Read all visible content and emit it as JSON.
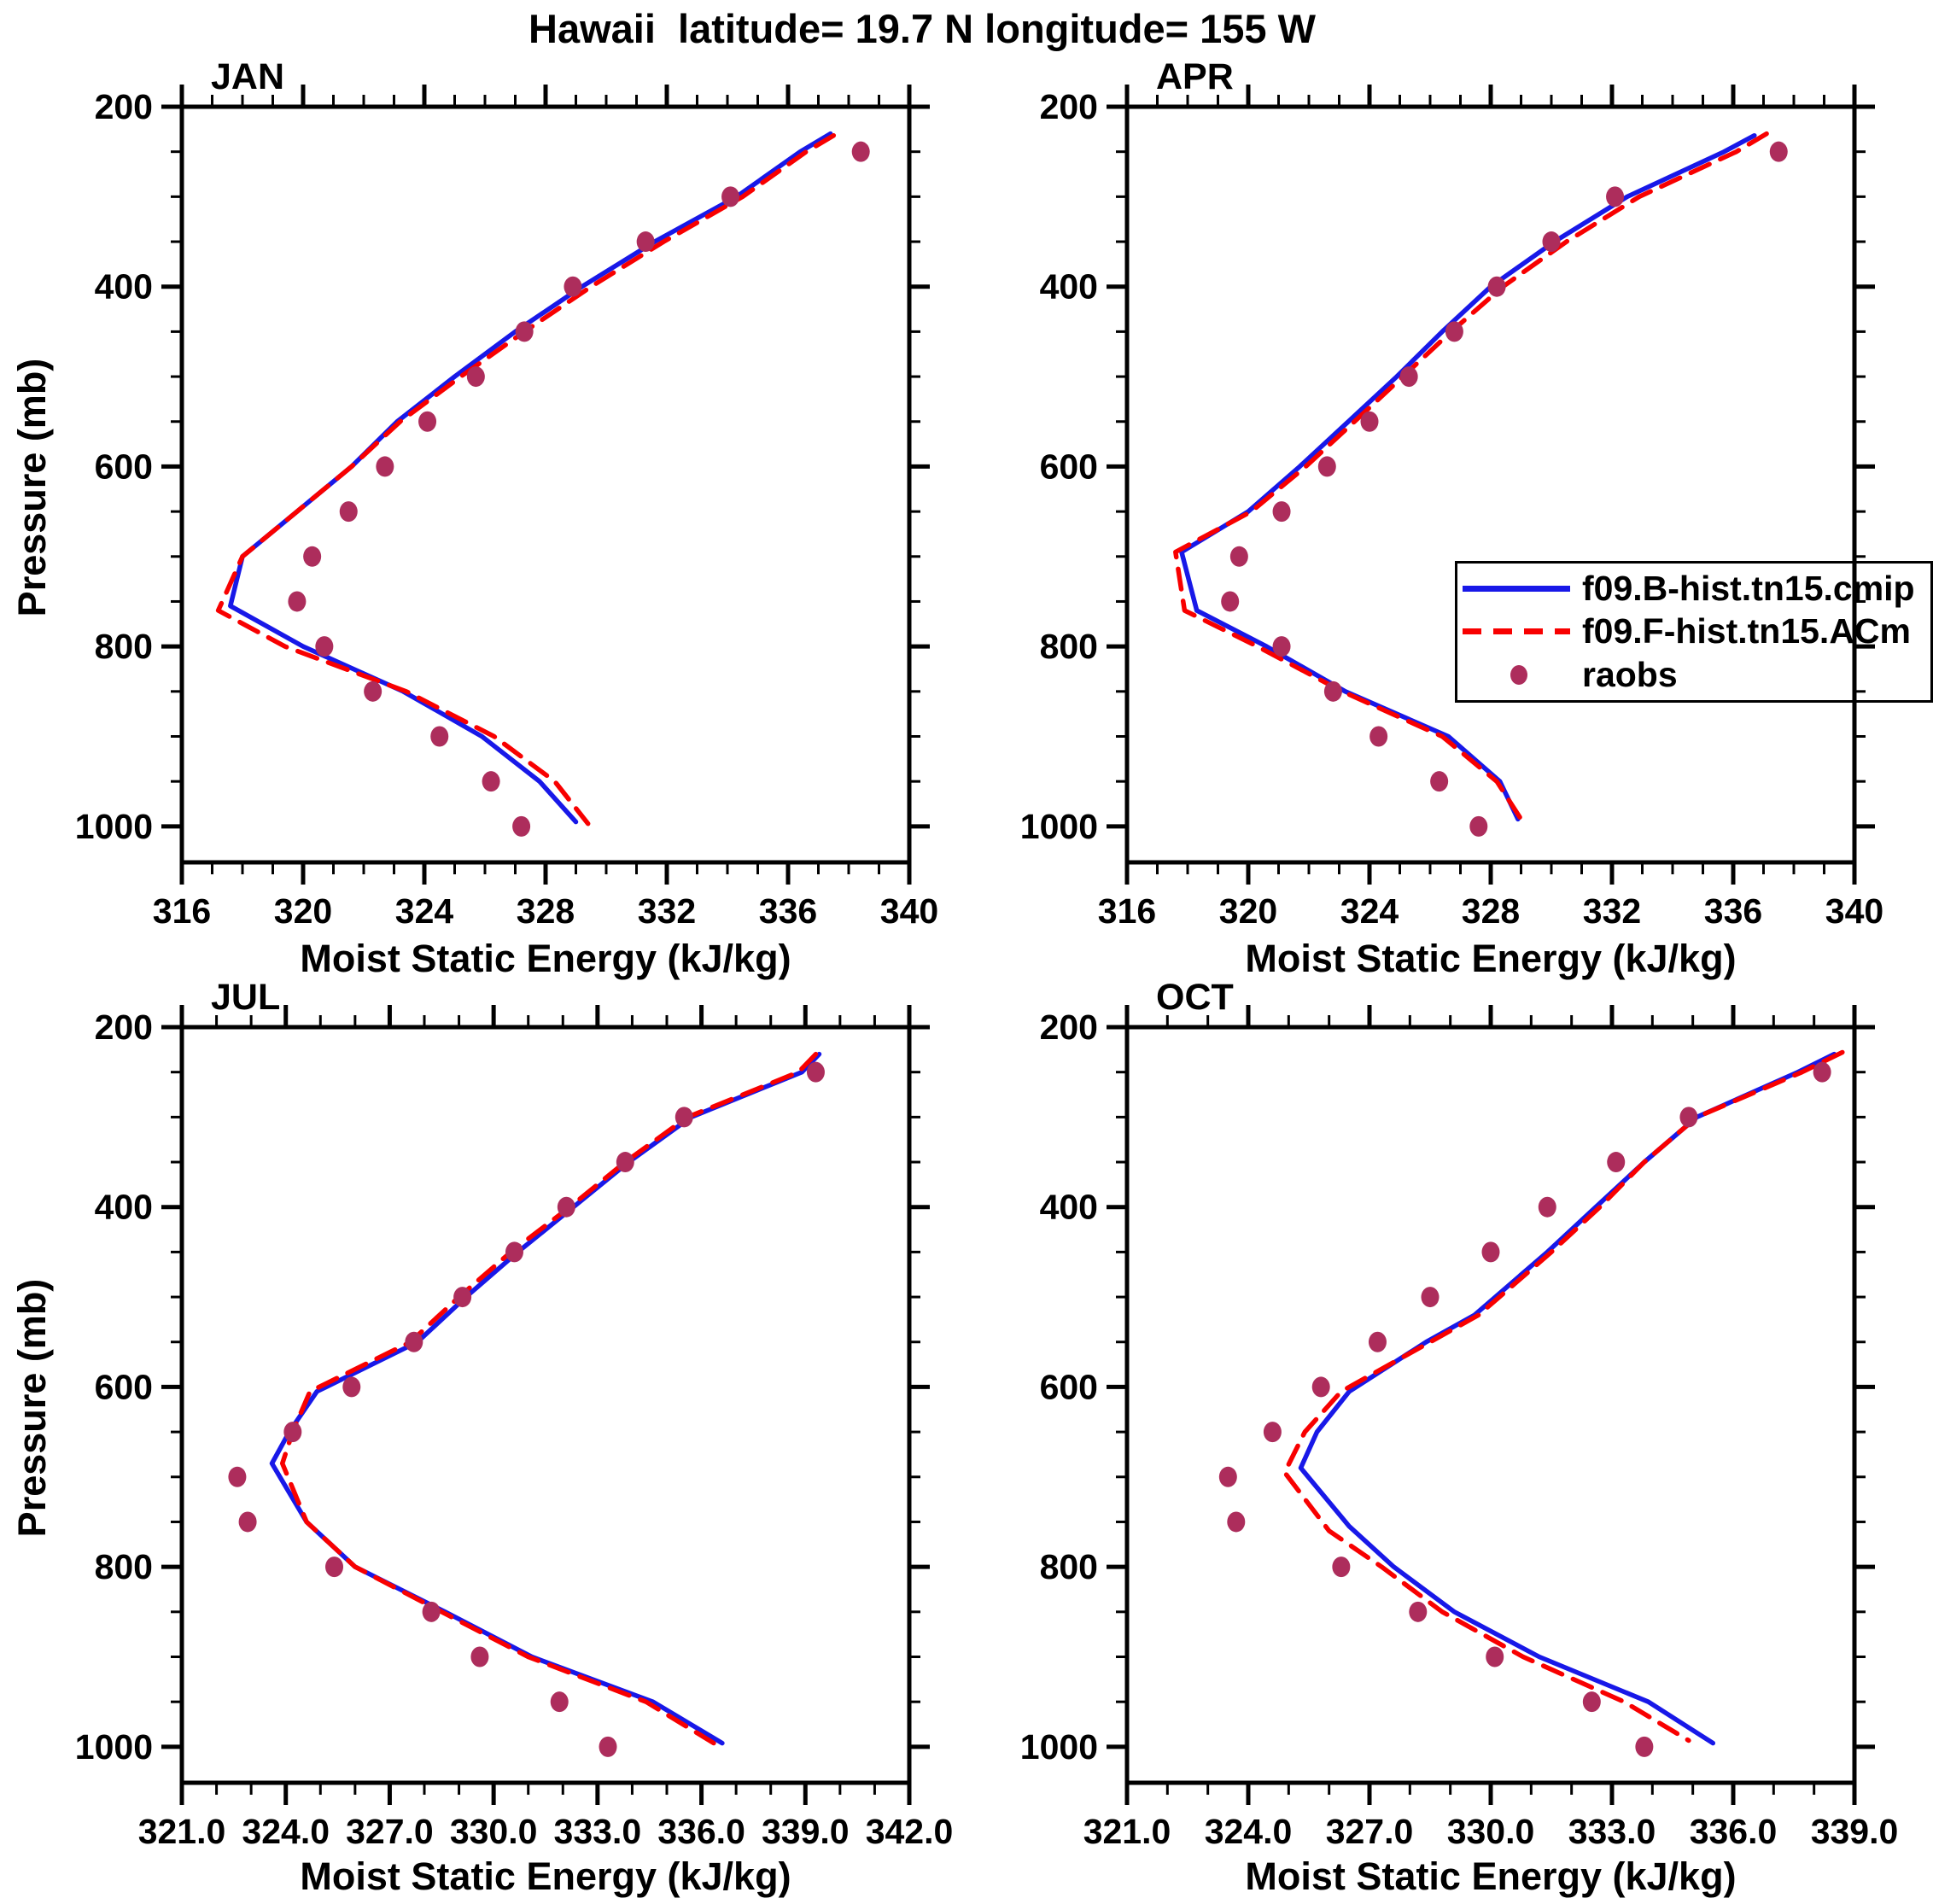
{
  "title": "Hawaii  latitude= 19.7 N longitude= 155 W",
  "axes": {
    "x_title": "Moist Static Energy (kJ/kg)",
    "y_title": "Pressure (mb)"
  },
  "colors": {
    "model_b": "#1818e8",
    "model_f": "#f80000",
    "raobs": "#ad2d5c",
    "axis": "#000000"
  },
  "legend": {
    "entries": [
      {
        "label": "f09.B-hist.tn15.cmip",
        "style": "solid",
        "color_key": "model_b"
      },
      {
        "label": "f09.F-hist.tn15.ACm",
        "style": "dashed",
        "color_key": "model_f"
      },
      {
        "label": "raobs",
        "style": "dots",
        "color_key": "raobs"
      }
    ]
  },
  "chart_data": [
    {
      "month": "JAN",
      "type": "line+scatter",
      "x_range": [
        316,
        340
      ],
      "x_major_step": 4,
      "x_minor_step": 1,
      "x_tick_labels": [
        "316",
        "320",
        "324",
        "328",
        "332",
        "336",
        "340"
      ],
      "y_range": [
        200,
        1040
      ],
      "y_ticks": [
        200,
        400,
        600,
        800,
        1000
      ],
      "y_minor_step": 50,
      "series": [
        {
          "name": "f09.B-hist.tn15.cmip",
          "style": "solid",
          "color_key": "model_b",
          "points": [
            [
              230,
              337.4
            ],
            [
              250,
              336.4
            ],
            [
              300,
              334.3
            ],
            [
              350,
              331.6
            ],
            [
              400,
              329.2
            ],
            [
              450,
              327.0
            ],
            [
              500,
              325.0
            ],
            [
              550,
              323.1
            ],
            [
              600,
              321.6
            ],
            [
              650,
              319.8
            ],
            [
              700,
              318.0
            ],
            [
              755,
              317.6
            ],
            [
              800,
              320.0
            ],
            [
              850,
              323.3
            ],
            [
              900,
              325.9
            ],
            [
              950,
              327.8
            ],
            [
              995,
              329.0
            ]
          ]
        },
        {
          "name": "f09.F-hist.tn15.ACm",
          "style": "dashed",
          "color_key": "model_f",
          "points": [
            [
              232,
              337.5
            ],
            [
              250,
              336.6
            ],
            [
              300,
              334.5
            ],
            [
              350,
              331.9
            ],
            [
              400,
              329.5
            ],
            [
              450,
              327.3
            ],
            [
              500,
              325.2
            ],
            [
              550,
              323.2
            ],
            [
              600,
              321.6
            ],
            [
              650,
              319.8
            ],
            [
              700,
              318.0
            ],
            [
              760,
              317.2
            ],
            [
              800,
              319.4
            ],
            [
              850,
              323.4
            ],
            [
              900,
              326.3
            ],
            [
              950,
              328.3
            ],
            [
              997,
              329.4
            ]
          ]
        },
        {
          "name": "raobs",
          "style": "dots",
          "color_key": "raobs",
          "points": [
            [
              250,
              338.4
            ],
            [
              300,
              334.1
            ],
            [
              350,
              331.3
            ],
            [
              400,
              328.9
            ],
            [
              450,
              327.3
            ],
            [
              500,
              325.7
            ],
            [
              550,
              324.1
            ],
            [
              600,
              322.7
            ],
            [
              650,
              321.5
            ],
            [
              700,
              320.3
            ],
            [
              750,
              319.8
            ],
            [
              800,
              320.7
            ],
            [
              850,
              322.3
            ],
            [
              900,
              324.5
            ],
            [
              950,
              326.2
            ],
            [
              1000,
              327.2
            ]
          ]
        }
      ]
    },
    {
      "month": "APR",
      "type": "line+scatter",
      "x_range": [
        316,
        340
      ],
      "x_major_step": 4,
      "x_minor_step": 1,
      "x_tick_labels": [
        "316",
        "320",
        "324",
        "328",
        "332",
        "336",
        "340"
      ],
      "y_range": [
        200,
        1040
      ],
      "y_ticks": [
        200,
        400,
        600,
        800,
        1000
      ],
      "y_minor_step": 50,
      "series": [
        {
          "name": "f09.B-hist.tn15.cmip",
          "style": "solid",
          "color_key": "model_b",
          "points": [
            [
              232,
              336.7
            ],
            [
              250,
              335.7
            ],
            [
              300,
              332.5
            ],
            [
              350,
              330.1
            ],
            [
              400,
              328.0
            ],
            [
              450,
              326.4
            ],
            [
              500,
              324.9
            ],
            [
              550,
              323.3
            ],
            [
              600,
              321.7
            ],
            [
              650,
              320.0
            ],
            [
              695,
              317.8
            ],
            [
              760,
              318.3
            ],
            [
              800,
              320.6
            ],
            [
              850,
              323.2
            ],
            [
              900,
              326.6
            ],
            [
              950,
              328.3
            ],
            [
              992,
              328.9
            ]
          ]
        },
        {
          "name": "f09.F-hist.tn15.ACm",
          "style": "dashed",
          "color_key": "model_f",
          "points": [
            [
              230,
              337.1
            ],
            [
              250,
              336.1
            ],
            [
              300,
              332.9
            ],
            [
              350,
              330.5
            ],
            [
              400,
              328.4
            ],
            [
              450,
              326.7
            ],
            [
              500,
              325.1
            ],
            [
              550,
              323.5
            ],
            [
              600,
              321.9
            ],
            [
              650,
              320.1
            ],
            [
              695,
              317.6
            ],
            [
              760,
              317.9
            ],
            [
              800,
              320.3
            ],
            [
              850,
              323.1
            ],
            [
              900,
              326.4
            ],
            [
              950,
              328.2
            ],
            [
              992,
              329.0
            ]
          ]
        },
        {
          "name": "raobs",
          "style": "dots",
          "color_key": "raobs",
          "points": [
            [
              250,
              337.5
            ],
            [
              300,
              332.1
            ],
            [
              350,
              330.0
            ],
            [
              400,
              328.2
            ],
            [
              450,
              326.8
            ],
            [
              500,
              325.3
            ],
            [
              550,
              324.0
            ],
            [
              600,
              322.6
            ],
            [
              650,
              321.1
            ],
            [
              700,
              319.7
            ],
            [
              750,
              319.4
            ],
            [
              800,
              321.1
            ],
            [
              850,
              322.8
            ],
            [
              900,
              324.3
            ],
            [
              950,
              326.3
            ],
            [
              1000,
              327.6
            ]
          ]
        }
      ]
    },
    {
      "month": "JUL",
      "type": "line+scatter",
      "x_range": [
        321,
        342
      ],
      "x_major_step": 3,
      "x_minor_step": 1,
      "x_tick_labels": [
        "321.0",
        "324.0",
        "327.0",
        "330.0",
        "333.0",
        "336.0",
        "339.0",
        "342.0"
      ],
      "y_range": [
        200,
        1040
      ],
      "y_ticks": [
        200,
        400,
        600,
        800,
        1000
      ],
      "y_minor_step": 50,
      "series": [
        {
          "name": "f09.B-hist.tn15.cmip",
          "style": "solid",
          "color_key": "model_b",
          "points": [
            [
              230,
              339.4
            ],
            [
              250,
              338.9
            ],
            [
              300,
              335.7
            ],
            [
              350,
              333.9
            ],
            [
              400,
              332.3
            ],
            [
              450,
              330.7
            ],
            [
              500,
              329.2
            ],
            [
              550,
              327.8
            ],
            [
              605,
              324.9
            ],
            [
              650,
              324.1
            ],
            [
              685,
              323.6
            ],
            [
              750,
              324.6
            ],
            [
              800,
              326.0
            ],
            [
              850,
              328.6
            ],
            [
              900,
              331.1
            ],
            [
              950,
              334.6
            ],
            [
              996,
              336.6
            ]
          ]
        },
        {
          "name": "f09.F-hist.tn15.ACm",
          "style": "dashed",
          "color_key": "model_f",
          "points": [
            [
              230,
              339.3
            ],
            [
              250,
              338.8
            ],
            [
              300,
              335.6
            ],
            [
              350,
              333.8
            ],
            [
              400,
              332.2
            ],
            [
              450,
              330.5
            ],
            [
              500,
              329.0
            ],
            [
              550,
              327.6
            ],
            [
              605,
              324.7
            ],
            [
              650,
              324.2
            ],
            [
              685,
              323.9
            ],
            [
              750,
              324.6
            ],
            [
              800,
              326.0
            ],
            [
              850,
              328.5
            ],
            [
              900,
              331.0
            ],
            [
              950,
              334.4
            ],
            [
              997,
              336.4
            ]
          ]
        },
        {
          "name": "raobs",
          "style": "dots",
          "color_key": "raobs",
          "points": [
            [
              250,
              339.3
            ],
            [
              300,
              335.5
            ],
            [
              350,
              333.8
            ],
            [
              400,
              332.1
            ],
            [
              450,
              330.6
            ],
            [
              500,
              329.1
            ],
            [
              550,
              327.7
            ],
            [
              600,
              325.9
            ],
            [
              650,
              324.2
            ],
            [
              700,
              322.6
            ],
            [
              750,
              322.9
            ],
            [
              800,
              325.4
            ],
            [
              850,
              328.2
            ],
            [
              900,
              329.6
            ],
            [
              950,
              331.9
            ],
            [
              1000,
              333.3
            ]
          ]
        }
      ]
    },
    {
      "month": "OCT",
      "type": "line+scatter",
      "x_range": [
        321,
        339
      ],
      "x_major_step": 3,
      "x_minor_step": 1,
      "x_tick_labels": [
        "321.0",
        "324.0",
        "327.0",
        "330.0",
        "333.0",
        "336.0",
        "339.0"
      ],
      "y_range": [
        200,
        1040
      ],
      "y_ticks": [
        200,
        400,
        600,
        800,
        1000
      ],
      "y_minor_step": 50,
      "series": [
        {
          "name": "f09.B-hist.tn15.cmip",
          "style": "solid",
          "color_key": "model_b",
          "points": [
            [
              230,
              338.5
            ],
            [
              250,
              337.6
            ],
            [
              300,
              335.1
            ],
            [
              350,
              333.8
            ],
            [
              400,
              332.6
            ],
            [
              450,
              331.4
            ],
            [
              520,
              329.6
            ],
            [
              550,
              328.4
            ],
            [
              605,
              326.5
            ],
            [
              650,
              325.7
            ],
            [
              690,
              325.3
            ],
            [
              755,
              326.5
            ],
            [
              800,
              327.6
            ],
            [
              850,
              329.1
            ],
            [
              900,
              331.2
            ],
            [
              950,
              333.9
            ],
            [
              996,
              335.5
            ]
          ]
        },
        {
          "name": "f09.F-hist.tn15.ACm",
          "style": "dashed",
          "color_key": "model_f",
          "points": [
            [
              228,
              338.7
            ],
            [
              250,
              337.7
            ],
            [
              300,
              335.1
            ],
            [
              350,
              333.8
            ],
            [
              400,
              332.7
            ],
            [
              450,
              331.5
            ],
            [
              520,
              329.7
            ],
            [
              550,
              328.5
            ],
            [
              605,
              326.3
            ],
            [
              650,
              325.4
            ],
            [
              695,
              324.9
            ],
            [
              760,
              326.0
            ],
            [
              800,
              327.3
            ],
            [
              850,
              328.8
            ],
            [
              900,
              330.8
            ],
            [
              950,
              333.3
            ],
            [
              993,
              334.9
            ]
          ]
        },
        {
          "name": "raobs",
          "style": "dots",
          "color_key": "raobs",
          "points": [
            [
              250,
              338.2
            ],
            [
              300,
              334.9
            ],
            [
              350,
              333.1
            ],
            [
              400,
              331.4
            ],
            [
              450,
              330.0
            ],
            [
              500,
              328.5
            ],
            [
              550,
              327.2
            ],
            [
              600,
              325.8
            ],
            [
              650,
              324.6
            ],
            [
              700,
              323.5
            ],
            [
              750,
              323.7
            ],
            [
              800,
              326.3
            ],
            [
              850,
              328.2
            ],
            [
              900,
              330.1
            ],
            [
              950,
              332.5
            ],
            [
              1000,
              333.8
            ]
          ]
        }
      ]
    }
  ]
}
